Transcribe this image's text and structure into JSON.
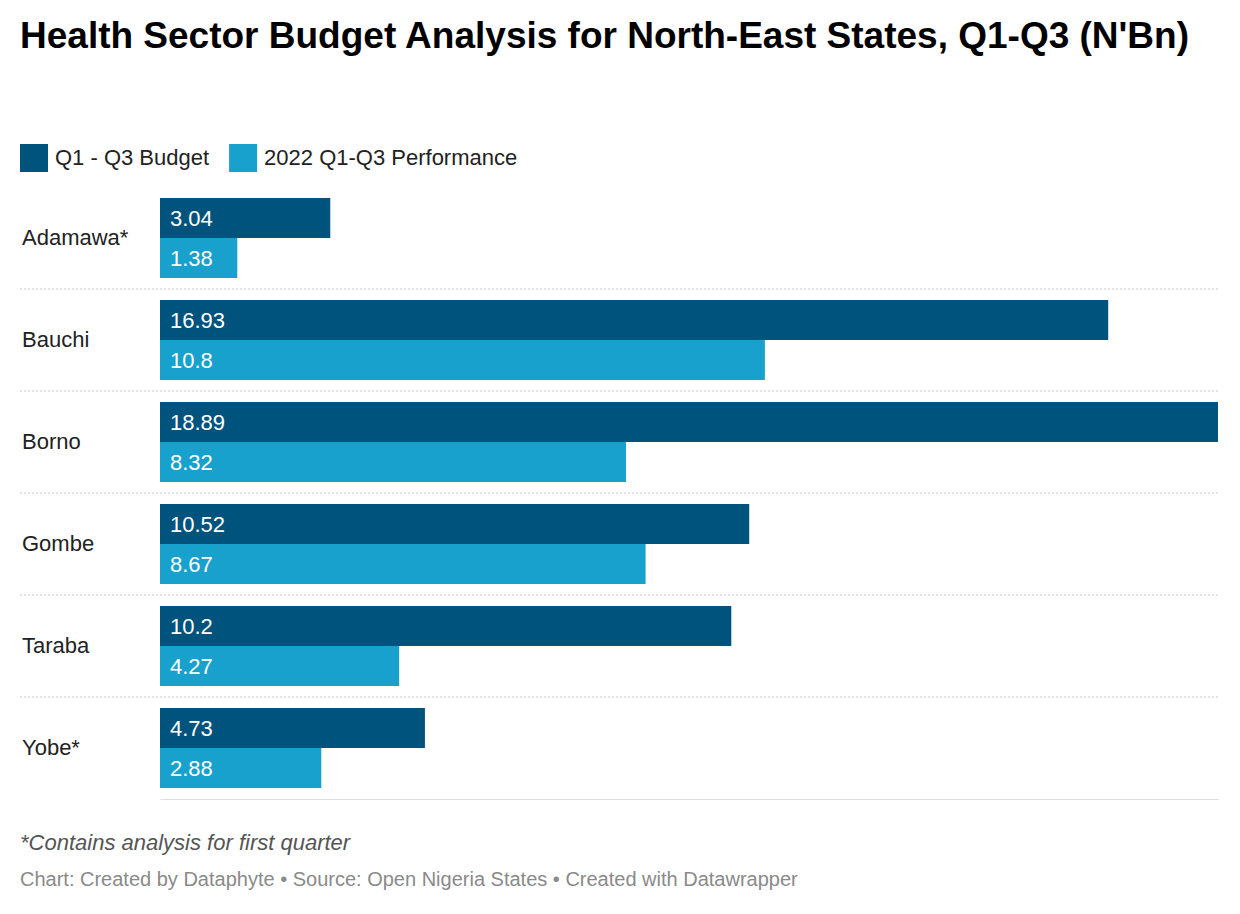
{
  "chart_data": {
    "type": "bar",
    "orientation": "horizontal",
    "title": "Health Sector Budget Analysis for North-East States, Q1-Q3 (N'Bn)",
    "categories": [
      "Adamawa*",
      "Bauchi",
      "Borno",
      "Gombe",
      "Taraba",
      "Yobe*"
    ],
    "series": [
      {
        "name": "Q1 - Q3 Budget",
        "color": "#00537c",
        "values": [
          3.04,
          16.93,
          18.89,
          10.52,
          10.2,
          4.73
        ]
      },
      {
        "name": "2022 Q1-Q3 Performance",
        "color": "#18a1cd",
        "values": [
          1.38,
          10.8,
          8.32,
          8.67,
          4.27,
          2.88
        ]
      }
    ],
    "xlim": [
      0,
      18.89
    ],
    "data_labels": true,
    "tick_labels": "y",
    "legend": "top-left",
    "note": "*Contains analysis for first quarter",
    "source": "Chart: Created by Dataphyte • Source: Open Nigeria States • Created with Datawrapper"
  }
}
